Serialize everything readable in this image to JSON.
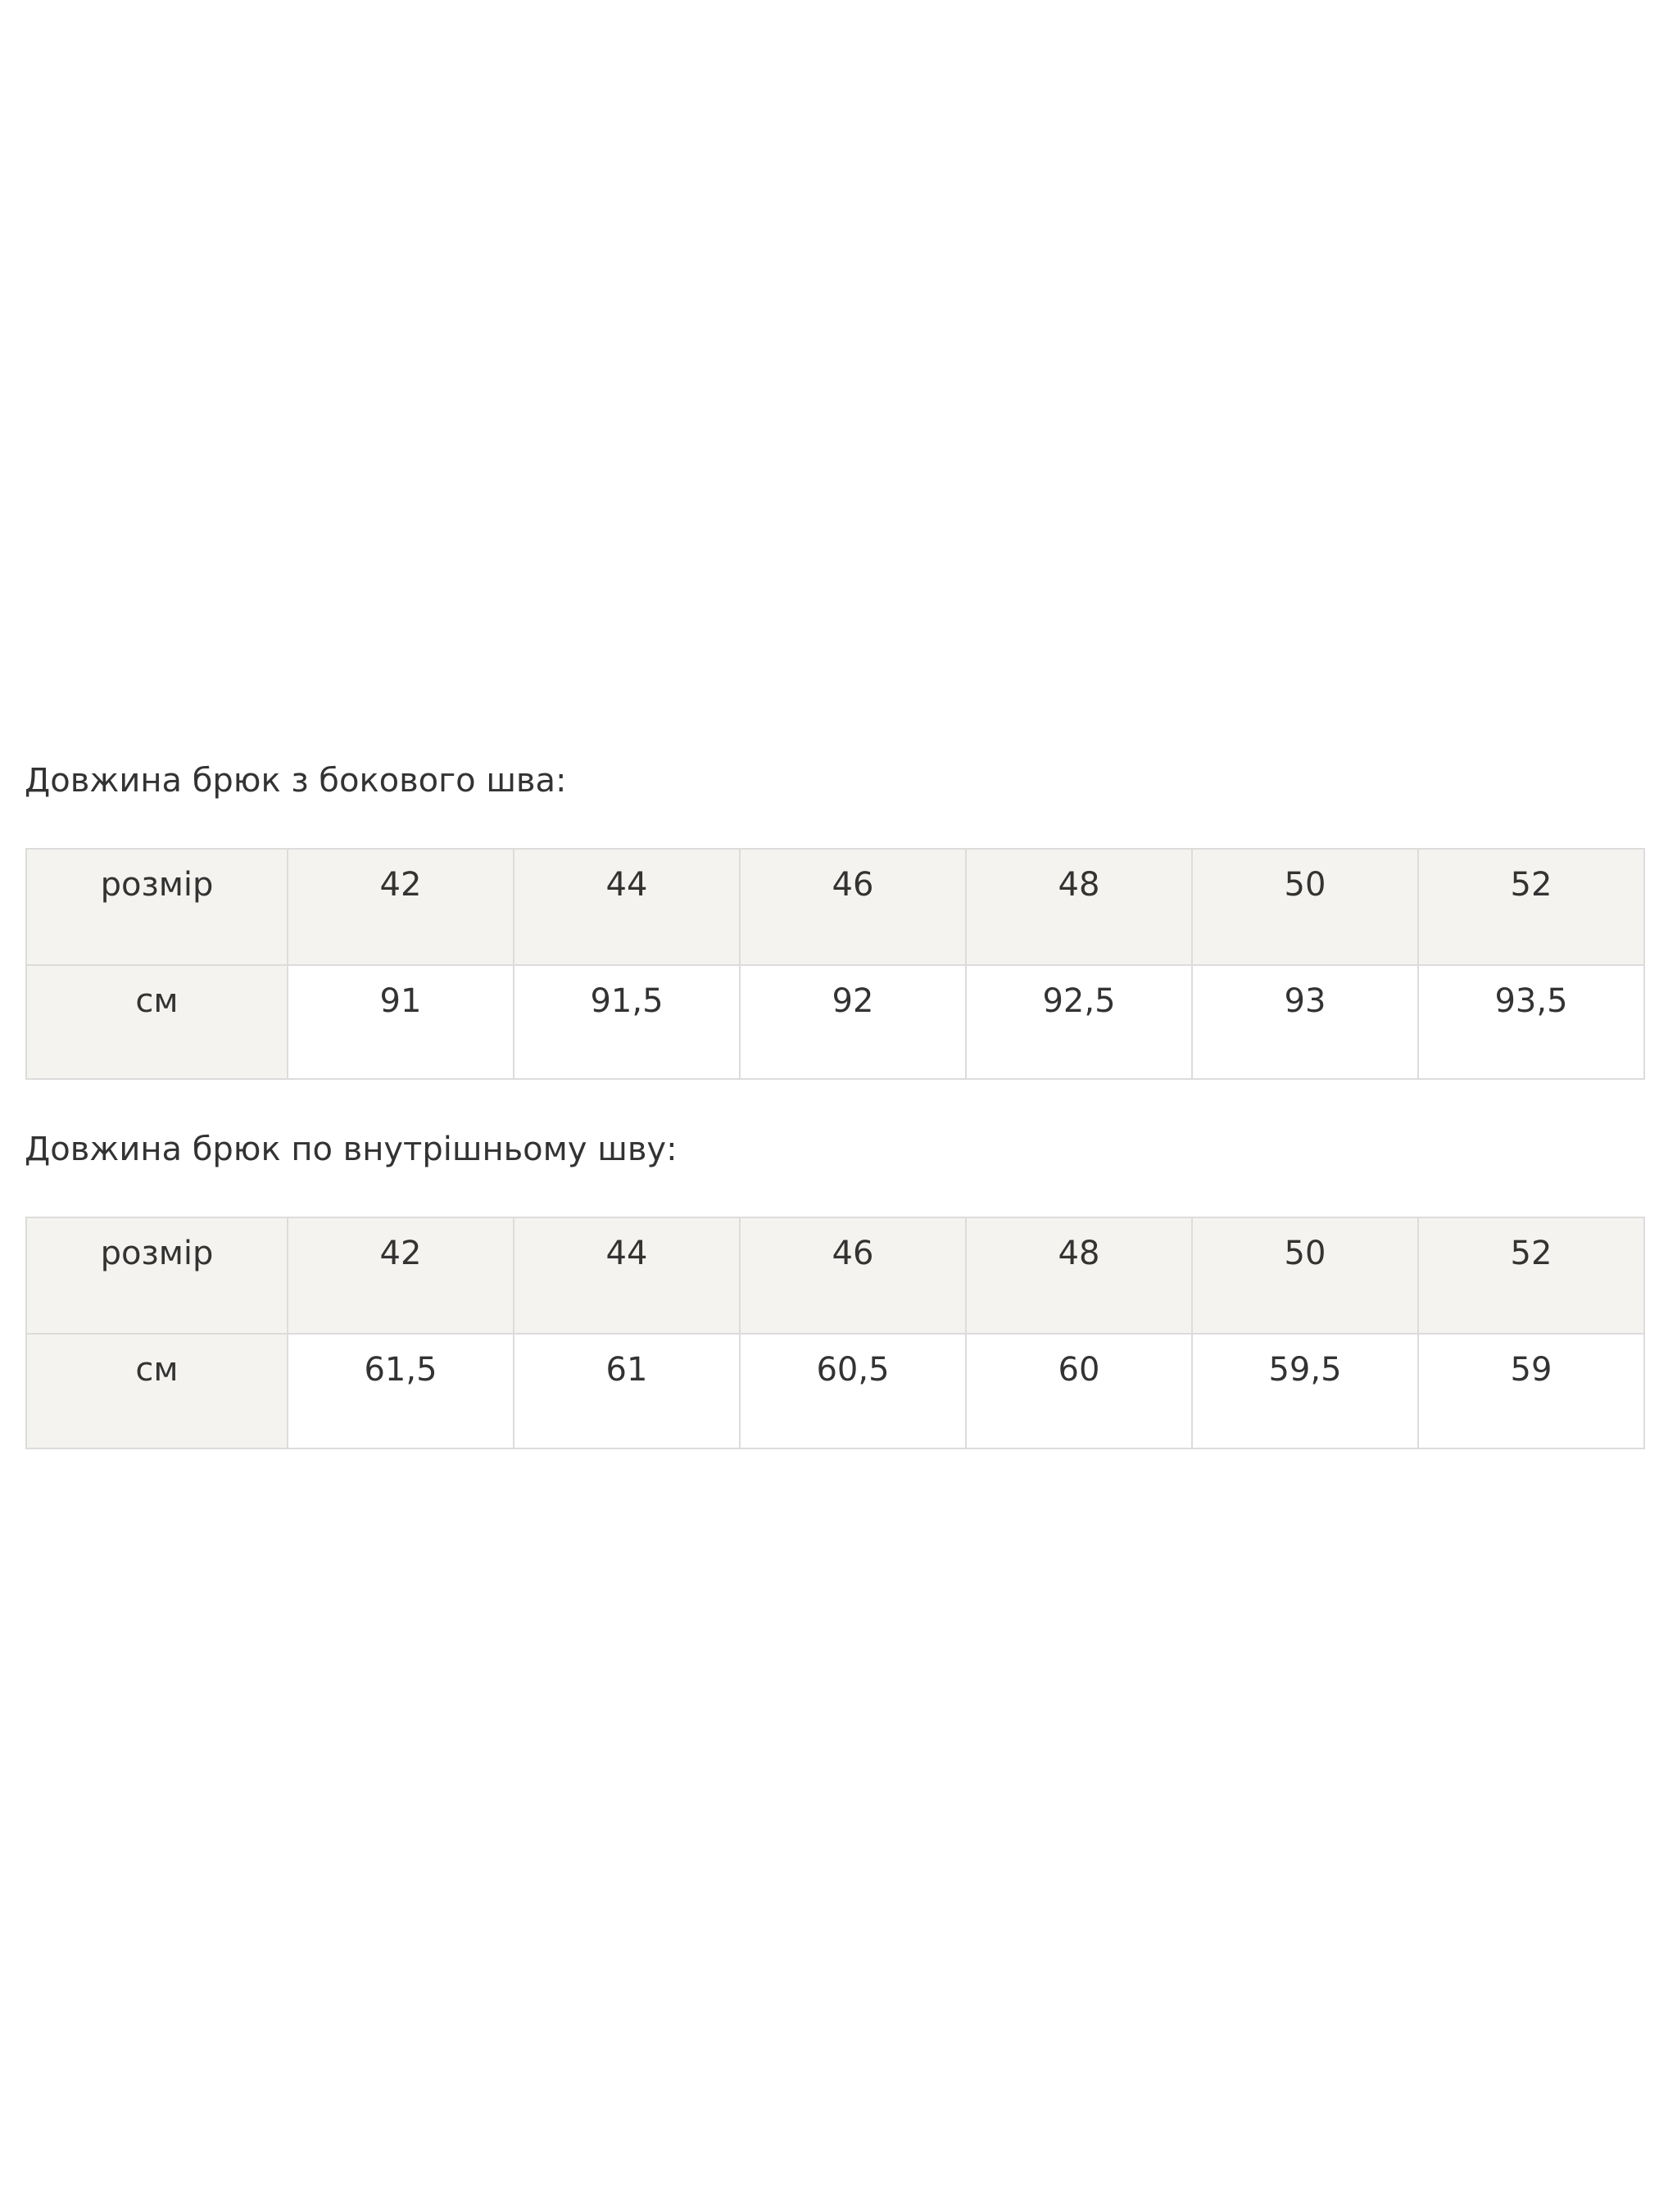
{
  "tables": [
    {
      "title": "Довжина брюк з бокового шва:",
      "header_label": "розмір",
      "sizes": [
        "42",
        "44",
        "46",
        "48",
        "50",
        "52"
      ],
      "row_label": "см",
      "values": [
        "91",
        "91,5",
        "92",
        "92,5",
        "93",
        "93,5"
      ]
    },
    {
      "title": "Довжина брюк по внутрішньому шву:",
      "header_label": "розмір",
      "sizes": [
        "42",
        "44",
        "46",
        "48",
        "50",
        "52"
      ],
      "row_label": "см",
      "values": [
        "61,5",
        "61",
        "60,5",
        "60",
        "59,5",
        "59"
      ]
    }
  ],
  "colors": {
    "header_bg": "#f4f3ef",
    "border": "#dcdcdc",
    "text": "#333333"
  }
}
